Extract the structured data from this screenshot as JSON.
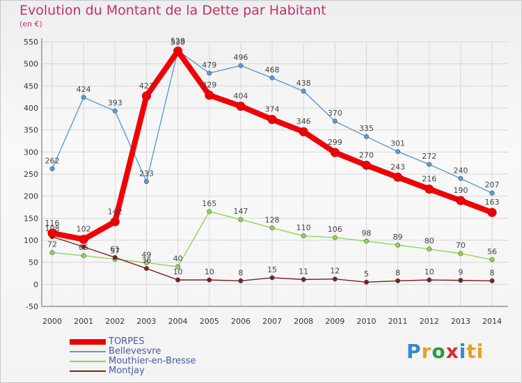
{
  "title": "Evolution du Montant de la Dette par Habitant",
  "subtitle": "(en €)",
  "logo_text": "Proxiti",
  "chart_data": {
    "type": "line",
    "title": "Evolution du Montant de la Dette par Habitant",
    "ylabel": "(en €)",
    "xlabel": "",
    "ylim": [
      -50,
      550
    ],
    "yticks": [
      -50,
      0,
      50,
      100,
      150,
      200,
      250,
      300,
      350,
      400,
      450,
      500,
      550
    ],
    "grid": true,
    "legend_position": "bottom-left",
    "categories": [
      "2000",
      "2001",
      "2002",
      "2003",
      "2004",
      "2005",
      "2006",
      "2007",
      "2008",
      "2009",
      "2010",
      "2011",
      "2012",
      "2013",
      "2014"
    ],
    "series": [
      {
        "name": "TORPES",
        "color": "#ee0000",
        "values": [
          116,
          102,
          142,
          427,
          529,
          429,
          404,
          374,
          346,
          299,
          270,
          243,
          216,
          190,
          163
        ]
      },
      {
        "name": "Bellevesvre",
        "color": "#5b9bd5",
        "values": [
          262,
          424,
          393,
          233,
          530,
          479,
          496,
          468,
          438,
          370,
          335,
          301,
          272,
          240,
          207
        ]
      },
      {
        "name": "Mouthier-en-Bresse",
        "color": "#8fd45a",
        "values": [
          72,
          65,
          57,
          49,
          40,
          165,
          147,
          128,
          110,
          106,
          98,
          89,
          80,
          70,
          56
        ]
      },
      {
        "name": "Montjay",
        "color": "#7a1f1f",
        "values": [
          108,
          85,
          61,
          36,
          10,
          10,
          8,
          15,
          11,
          12,
          5,
          8,
          10,
          9,
          8
        ]
      }
    ]
  }
}
